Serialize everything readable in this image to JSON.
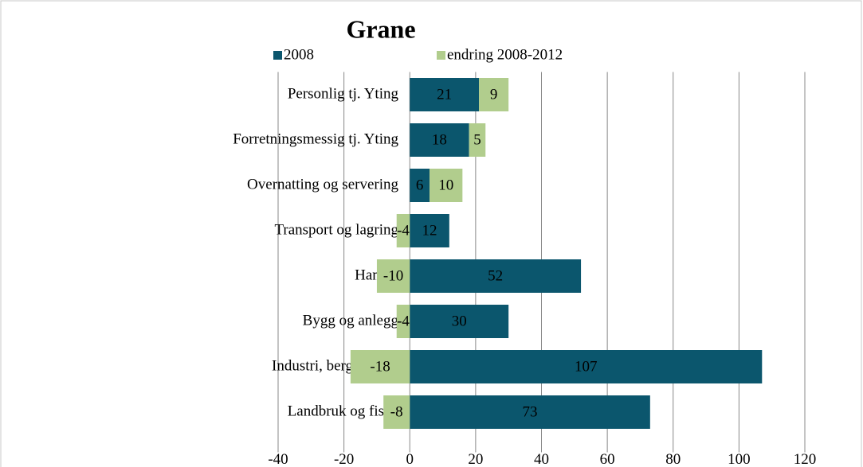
{
  "chart_data": {
    "type": "stacked_barh",
    "title": "Grane",
    "categories": [
      "Personlig tj. Yting",
      "Forretningsmessig tj. Yting",
      "Overnatting og servering",
      "Transport og lagring",
      "Handel",
      "Bygg og anlegg",
      "Industri, bergverk, el",
      "Landbruk og fiske"
    ],
    "series": [
      {
        "name": "2008",
        "color": "#0b566d",
        "values": [
          21,
          18,
          6,
          12,
          52,
          30,
          107,
          73
        ]
      },
      {
        "name": "endring 2008-2012",
        "color": "#b1cd8d",
        "values": [
          9,
          5,
          10,
          -4,
          -10,
          -4,
          -18,
          -8
        ]
      }
    ],
    "xlim": [
      -40,
      120
    ],
    "xticks": [
      -40,
      -20,
      0,
      20,
      40,
      60,
      80,
      100,
      120
    ],
    "grid": true,
    "legend": "top"
  }
}
